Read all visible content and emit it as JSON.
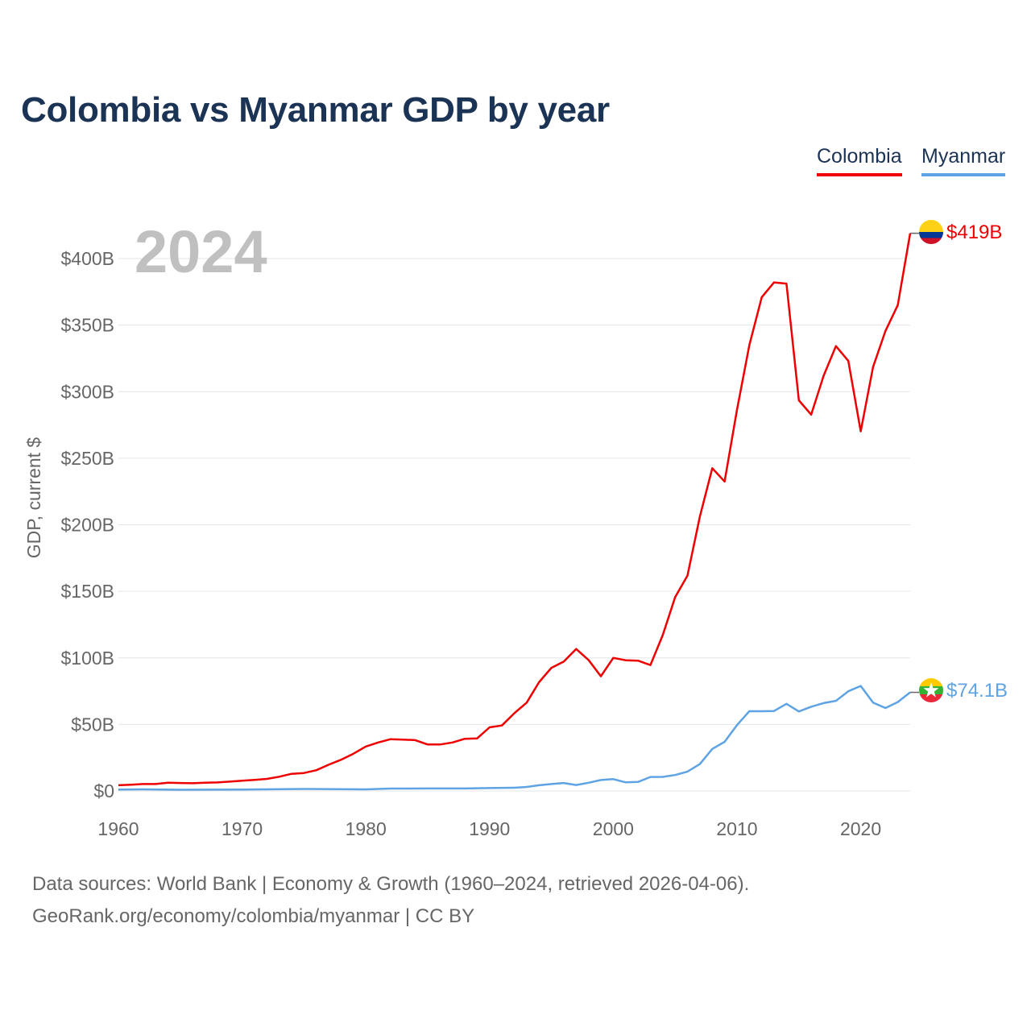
{
  "title": "Colombia vs Myanmar GDP by year",
  "legend": [
    {
      "label": "Colombia",
      "color": "#ee0000"
    },
    {
      "label": "Myanmar",
      "color": "#5ea3e3"
    }
  ],
  "year_watermark": "2024",
  "footer": {
    "line1": "Data sources: World Bank | Economy & Growth (1960–2024, retrieved 2026-04-06).",
    "line2": "GeoRank.org/economy/colombia/myanmar | CC BY"
  },
  "colors": {
    "title": "#1b3354",
    "grid": "#e6e6e6",
    "axis_text": "#666666",
    "watermark": "#c0c0c0"
  },
  "chart_data": {
    "type": "line",
    "ylabel": "GDP, current $",
    "xlabel": "",
    "xlim": [
      1960,
      2024
    ],
    "ylim": [
      0,
      419
    ],
    "x_ticks": [
      1960,
      1970,
      1980,
      1990,
      2000,
      2010,
      2020
    ],
    "x_tick_labels": [
      "1960",
      "1970",
      "1980",
      "1990",
      "2000",
      "2010",
      "2020"
    ],
    "y_ticks": [
      0,
      50,
      100,
      150,
      200,
      250,
      300,
      350,
      400
    ],
    "y_tick_labels": [
      "$0",
      "$50B",
      "$100B",
      "$150B",
      "$200B",
      "$250B",
      "$300B",
      "$350B",
      "$400B"
    ],
    "series": [
      {
        "name": "Colombia",
        "color": "#ee0000",
        "end_label": "$419B",
        "flag_icon": "colombia-flag-icon",
        "points": [
          [
            1960,
            4.3
          ],
          [
            1961,
            4.7
          ],
          [
            1962,
            5.2
          ],
          [
            1963,
            5.2
          ],
          [
            1964,
            6.2
          ],
          [
            1965,
            6.0
          ],
          [
            1966,
            5.8
          ],
          [
            1967,
            6.2
          ],
          [
            1968,
            6.4
          ],
          [
            1969,
            7.0
          ],
          [
            1970,
            7.7
          ],
          [
            1971,
            8.3
          ],
          [
            1972,
            9.1
          ],
          [
            1973,
            10.7
          ],
          [
            1974,
            12.9
          ],
          [
            1975,
            13.5
          ],
          [
            1976,
            15.6
          ],
          [
            1977,
            19.7
          ],
          [
            1978,
            23.5
          ],
          [
            1979,
            28.0
          ],
          [
            1980,
            33.4
          ],
          [
            1981,
            36.4
          ],
          [
            1982,
            38.9
          ],
          [
            1983,
            38.6
          ],
          [
            1984,
            38.2
          ],
          [
            1985,
            34.9
          ],
          [
            1986,
            34.9
          ],
          [
            1987,
            36.4
          ],
          [
            1988,
            39.2
          ],
          [
            1989,
            39.5
          ],
          [
            1990,
            47.8
          ],
          [
            1991,
            49.2
          ],
          [
            1992,
            58.4
          ],
          [
            1993,
            66.4
          ],
          [
            1994,
            81.7
          ],
          [
            1995,
            92.5
          ],
          [
            1996,
            97.2
          ],
          [
            1997,
            106.7
          ],
          [
            1998,
            98.4
          ],
          [
            1999,
            86.2
          ],
          [
            2000,
            100.0
          ],
          [
            2001,
            98.2
          ],
          [
            2002,
            97.9
          ],
          [
            2003,
            94.6
          ],
          [
            2004,
            117.1
          ],
          [
            2005,
            145.6
          ],
          [
            2006,
            161.8
          ],
          [
            2007,
            206.2
          ],
          [
            2008,
            242.5
          ],
          [
            2009,
            232.5
          ],
          [
            2010,
            286.5
          ],
          [
            2011,
            334.9
          ],
          [
            2012,
            370.9
          ],
          [
            2013,
            382.1
          ],
          [
            2014,
            381.2
          ],
          [
            2015,
            293.5
          ],
          [
            2016,
            282.7
          ],
          [
            2017,
            311.9
          ],
          [
            2018,
            334.2
          ],
          [
            2019,
            323.1
          ],
          [
            2020,
            270.2
          ],
          [
            2021,
            318.5
          ],
          [
            2022,
            345.6
          ],
          [
            2023,
            365.0
          ],
          [
            2024,
            419.0
          ]
        ]
      },
      {
        "name": "Myanmar",
        "color": "#5ea3e3",
        "end_label": "$74.1B",
        "flag_icon": "myanmar-flag-icon",
        "points": [
          [
            1960,
            1.0
          ],
          [
            1962,
            1.2
          ],
          [
            1965,
            0.9
          ],
          [
            1970,
            1.1
          ],
          [
            1975,
            1.5
          ],
          [
            1980,
            1.2
          ],
          [
            1982,
            1.8
          ],
          [
            1985,
            1.9
          ],
          [
            1988,
            1.9
          ],
          [
            1990,
            2.2
          ],
          [
            1992,
            2.4
          ],
          [
            1993,
            3.0
          ],
          [
            1994,
            4.3
          ],
          [
            1995,
            5.2
          ],
          [
            1996,
            6.0
          ],
          [
            1997,
            4.5
          ],
          [
            1998,
            6.2
          ],
          [
            1999,
            8.2
          ],
          [
            2000,
            8.9
          ],
          [
            2001,
            6.5
          ],
          [
            2002,
            6.8
          ],
          [
            2003,
            10.5
          ],
          [
            2004,
            10.6
          ],
          [
            2005,
            12.0
          ],
          [
            2006,
            14.6
          ],
          [
            2007,
            20.2
          ],
          [
            2008,
            31.6
          ],
          [
            2009,
            36.9
          ],
          [
            2010,
            49.5
          ],
          [
            2011,
            59.9
          ],
          [
            2012,
            59.9
          ],
          [
            2013,
            60.1
          ],
          [
            2014,
            65.5
          ],
          [
            2015,
            59.7
          ],
          [
            2016,
            63.3
          ],
          [
            2017,
            66.0
          ],
          [
            2018,
            67.7
          ],
          [
            2019,
            74.9
          ],
          [
            2020,
            78.9
          ],
          [
            2021,
            66.4
          ],
          [
            2022,
            62.3
          ],
          [
            2023,
            66.8
          ],
          [
            2024,
            74.1
          ]
        ]
      }
    ]
  }
}
